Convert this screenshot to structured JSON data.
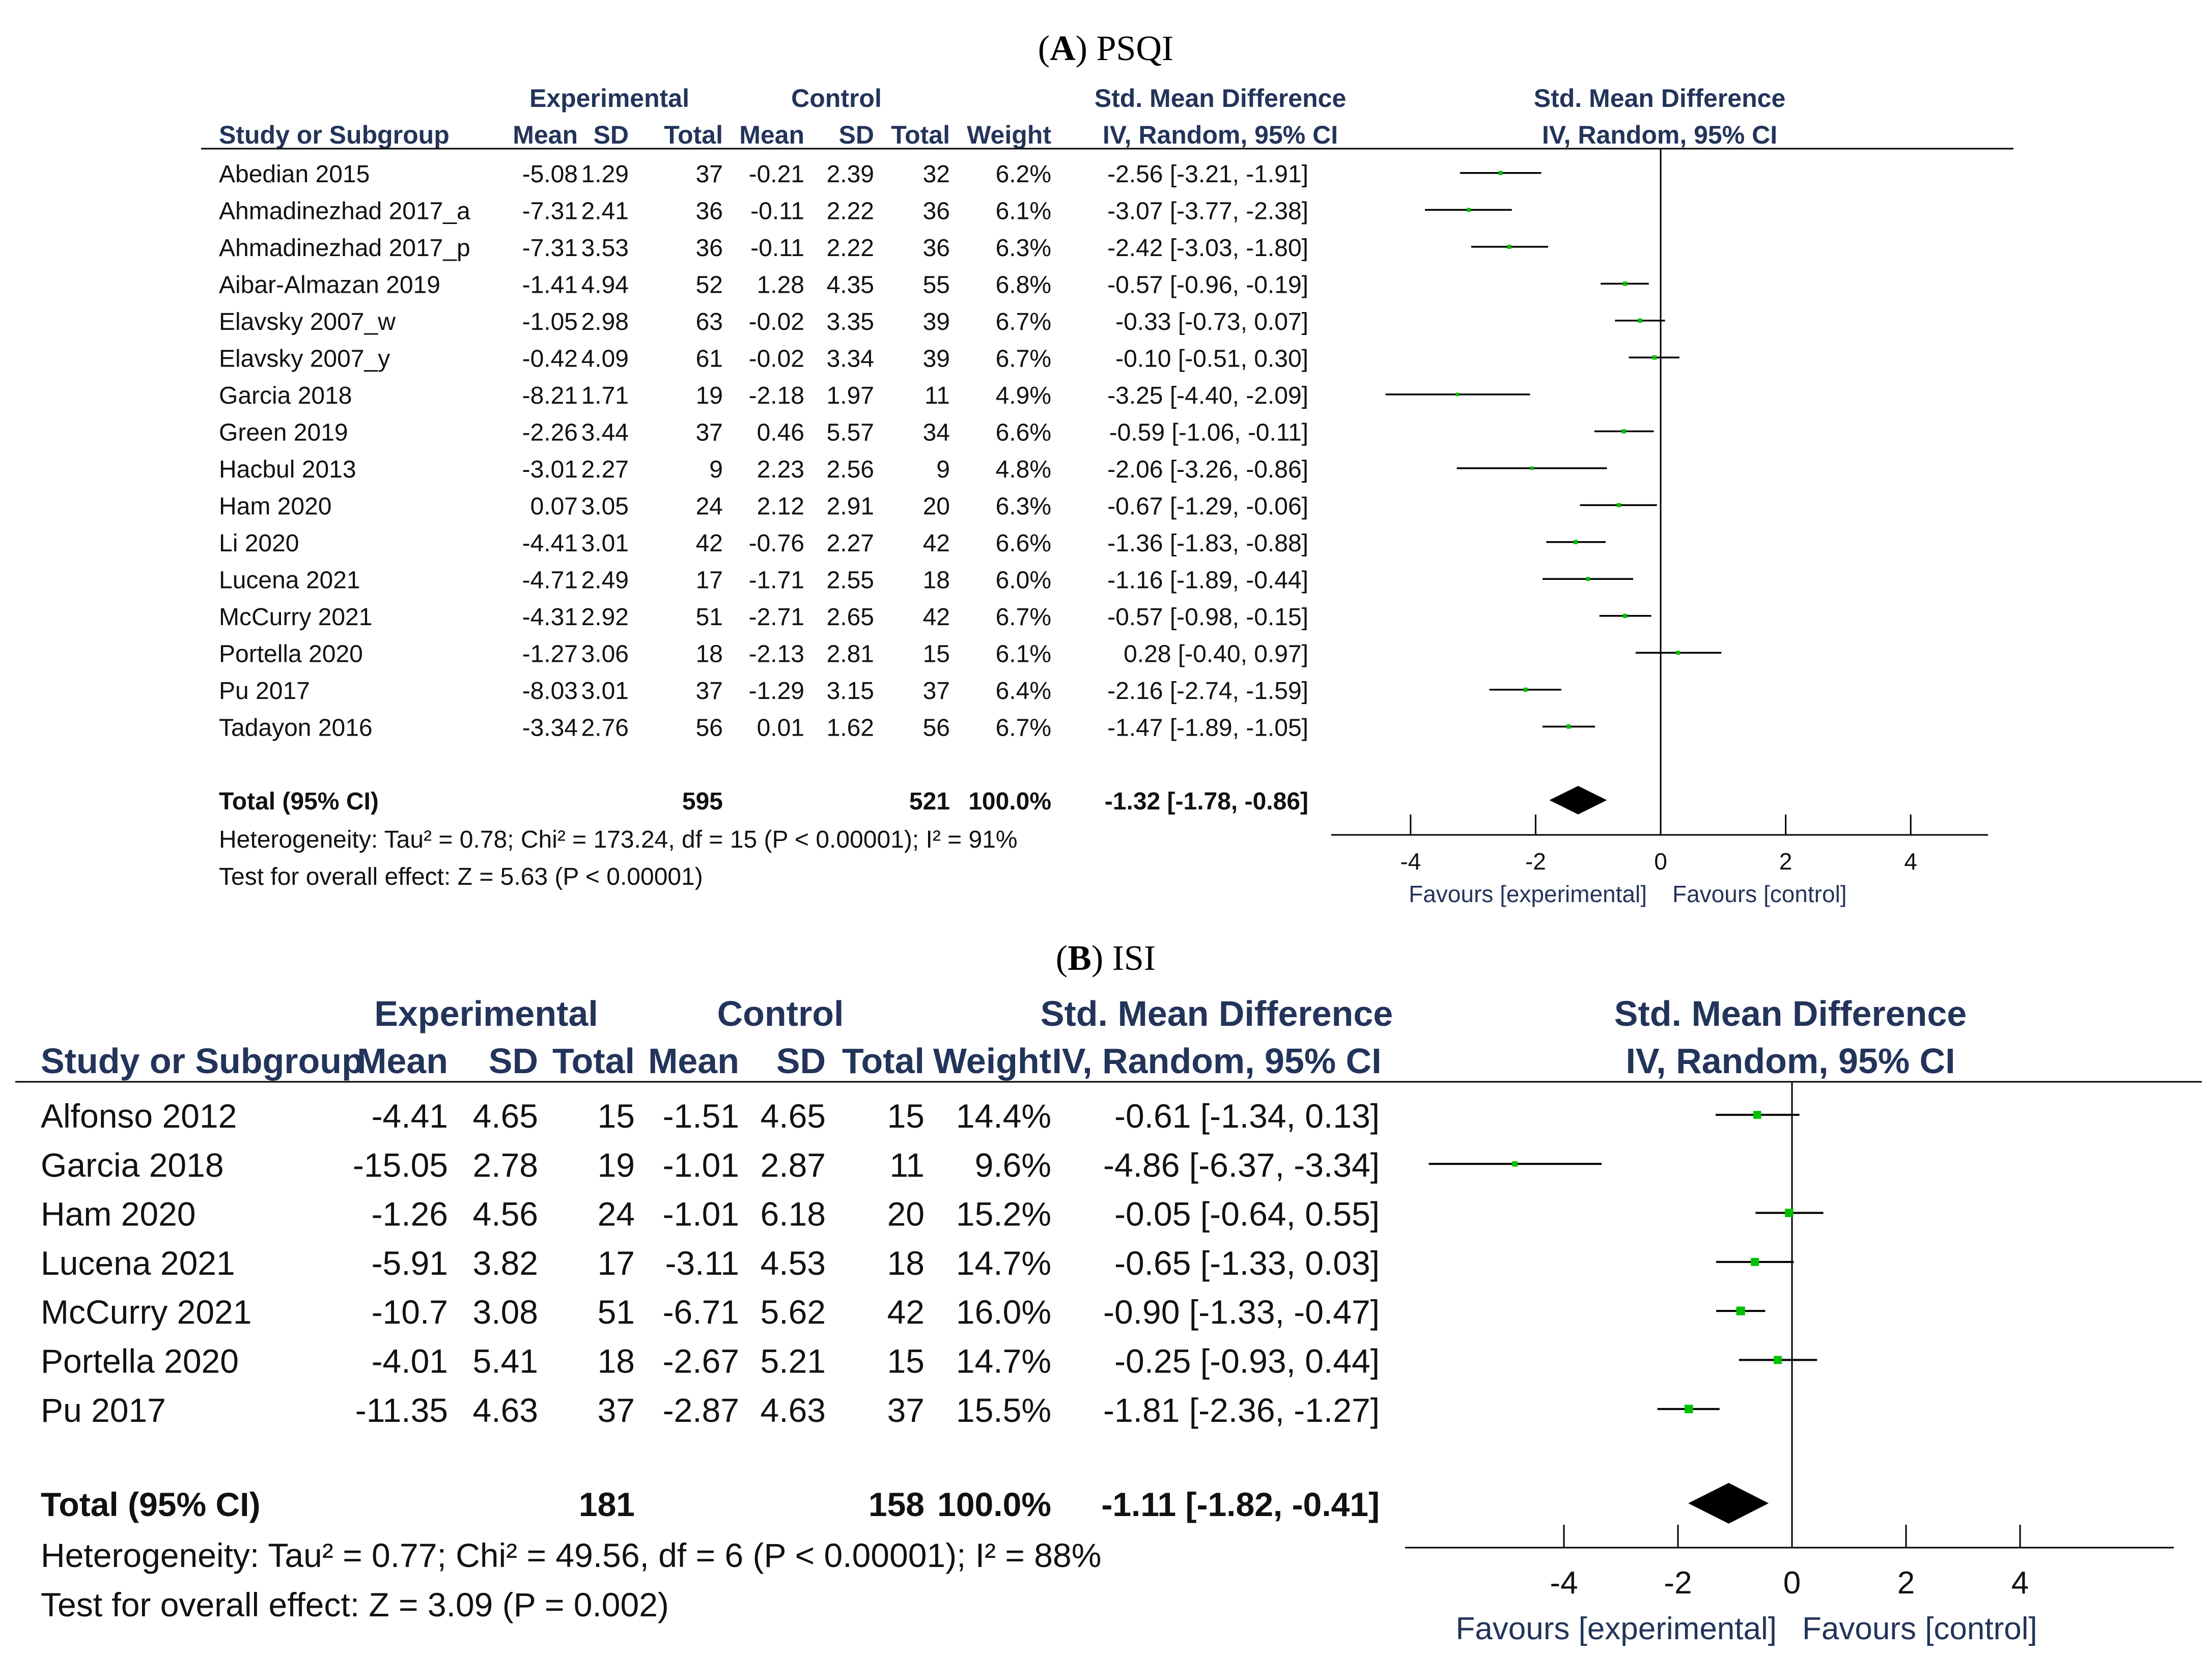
{
  "chart_data": [
    {
      "type": "table",
      "panel_letter": "A",
      "panel_name": "PSQI",
      "header": {
        "group_experimental": "Experimental",
        "group_control": "Control",
        "smd_title": "Std. Mean Difference",
        "study_col": "Study or Subgroup",
        "mean": "Mean",
        "sd": "SD",
        "total": "Total",
        "weight": "Weight",
        "method": "IV, Random, 95% CI",
        "plot_title": "Std. Mean Difference",
        "plot_method": "IV, Random, 95% CI"
      },
      "studies": [
        {
          "name": "Abedian 2015",
          "e_mean": "-5.08",
          "e_sd": "1.29",
          "e_total": "37",
          "c_mean": "-0.21",
          "c_sd": "2.39",
          "c_total": "32",
          "weight": "6.2%",
          "ci_text": "-2.56 [-3.21, -1.91]",
          "est": -2.56,
          "lo": -3.21,
          "hi": -1.91,
          "w": 6.2
        },
        {
          "name": "Ahmadinezhad 2017_a",
          "e_mean": "-7.31",
          "e_sd": "2.41",
          "e_total": "36",
          "c_mean": "-0.11",
          "c_sd": "2.22",
          "c_total": "36",
          "weight": "6.1%",
          "ci_text": "-3.07 [-3.77, -2.38]",
          "est": -3.07,
          "lo": -3.77,
          "hi": -2.38,
          "w": 6.1
        },
        {
          "name": "Ahmadinezhad 2017_p",
          "e_mean": "-7.31",
          "e_sd": "3.53",
          "e_total": "36",
          "c_mean": "-0.11",
          "c_sd": "2.22",
          "c_total": "36",
          "weight": "6.3%",
          "ci_text": "-2.42 [-3.03, -1.80]",
          "est": -2.42,
          "lo": -3.03,
          "hi": -1.8,
          "w": 6.3
        },
        {
          "name": "Aibar-Almazan 2019",
          "e_mean": "-1.41",
          "e_sd": "4.94",
          "e_total": "52",
          "c_mean": "1.28",
          "c_sd": "4.35",
          "c_total": "55",
          "weight": "6.8%",
          "ci_text": "-0.57 [-0.96, -0.19]",
          "est": -0.57,
          "lo": -0.96,
          "hi": -0.19,
          "w": 6.8
        },
        {
          "name": "Elavsky 2007_w",
          "e_mean": "-1.05",
          "e_sd": "2.98",
          "e_total": "63",
          "c_mean": "-0.02",
          "c_sd": "3.35",
          "c_total": "39",
          "weight": "6.7%",
          "ci_text": "-0.33 [-0.73, 0.07]",
          "est": -0.33,
          "lo": -0.73,
          "hi": 0.07,
          "w": 6.7
        },
        {
          "name": "Elavsky 2007_y",
          "e_mean": "-0.42",
          "e_sd": "4.09",
          "e_total": "61",
          "c_mean": "-0.02",
          "c_sd": "3.34",
          "c_total": "39",
          "weight": "6.7%",
          "ci_text": "-0.10 [-0.51, 0.30]",
          "est": -0.1,
          "lo": -0.51,
          "hi": 0.3,
          "w": 6.7
        },
        {
          "name": "Garcia 2018",
          "e_mean": "-8.21",
          "e_sd": "1.71",
          "e_total": "19",
          "c_mean": "-2.18",
          "c_sd": "1.97",
          "c_total": "11",
          "weight": "4.9%",
          "ci_text": "-3.25 [-4.40, -2.09]",
          "est": -3.25,
          "lo": -4.4,
          "hi": -2.09,
          "w": 4.9
        },
        {
          "name": "Green 2019",
          "e_mean": "-2.26",
          "e_sd": "3.44",
          "e_total": "37",
          "c_mean": "0.46",
          "c_sd": "5.57",
          "c_total": "34",
          "weight": "6.6%",
          "ci_text": "-0.59 [-1.06, -0.11]",
          "est": -0.59,
          "lo": -1.06,
          "hi": -0.11,
          "w": 6.6
        },
        {
          "name": "Hacbul 2013",
          "e_mean": "-3.01",
          "e_sd": "2.27",
          "e_total": "9",
          "c_mean": "2.23",
          "c_sd": "2.56",
          "c_total": "9",
          "weight": "4.8%",
          "ci_text": "-2.06 [-3.26, -0.86]",
          "est": -2.06,
          "lo": -3.26,
          "hi": -0.86,
          "w": 4.8
        },
        {
          "name": "Ham 2020",
          "e_mean": "0.07",
          "e_sd": "3.05",
          "e_total": "24",
          "c_mean": "2.12",
          "c_sd": "2.91",
          "c_total": "20",
          "weight": "6.3%",
          "ci_text": "-0.67 [-1.29, -0.06]",
          "est": -0.67,
          "lo": -1.29,
          "hi": -0.06,
          "w": 6.3
        },
        {
          "name": "Li 2020",
          "e_mean": "-4.41",
          "e_sd": "3.01",
          "e_total": "42",
          "c_mean": "-0.76",
          "c_sd": "2.27",
          "c_total": "42",
          "weight": "6.6%",
          "ci_text": "-1.36 [-1.83, -0.88]",
          "est": -1.36,
          "lo": -1.83,
          "hi": -0.88,
          "w": 6.6
        },
        {
          "name": "Lucena 2021",
          "e_mean": "-4.71",
          "e_sd": "2.49",
          "e_total": "17",
          "c_mean": "-1.71",
          "c_sd": "2.55",
          "c_total": "18",
          "weight": "6.0%",
          "ci_text": "-1.16 [-1.89, -0.44]",
          "est": -1.16,
          "lo": -1.89,
          "hi": -0.44,
          "w": 6.0
        },
        {
          "name": "McCurry 2021",
          "e_mean": "-4.31",
          "e_sd": "2.92",
          "e_total": "51",
          "c_mean": "-2.71",
          "c_sd": "2.65",
          "c_total": "42",
          "weight": "6.7%",
          "ci_text": "-0.57 [-0.98, -0.15]",
          "est": -0.57,
          "lo": -0.98,
          "hi": -0.15,
          "w": 6.7
        },
        {
          "name": "Portella 2020",
          "e_mean": "-1.27",
          "e_sd": "3.06",
          "e_total": "18",
          "c_mean": "-2.13",
          "c_sd": "2.81",
          "c_total": "15",
          "weight": "6.1%",
          "ci_text": "0.28 [-0.40, 0.97]",
          "est": 0.28,
          "lo": -0.4,
          "hi": 0.97,
          "w": 6.1
        },
        {
          "name": "Pu 2017",
          "e_mean": "-8.03",
          "e_sd": "3.01",
          "e_total": "37",
          "c_mean": "-1.29",
          "c_sd": "3.15",
          "c_total": "37",
          "weight": "6.4%",
          "ci_text": "-2.16 [-2.74, -1.59]",
          "est": -2.16,
          "lo": -2.74,
          "hi": -1.59,
          "w": 6.4
        },
        {
          "name": "Tadayon 2016",
          "e_mean": "-3.34",
          "e_sd": "2.76",
          "e_total": "56",
          "c_mean": "0.01",
          "c_sd": "1.62",
          "c_total": "56",
          "weight": "6.7%",
          "ci_text": "-1.47 [-1.89, -1.05]",
          "est": -1.47,
          "lo": -1.89,
          "hi": -1.05,
          "w": 6.7
        }
      ],
      "total": {
        "label": "Total (95% CI)",
        "e_total": "595",
        "c_total": "521",
        "weight": "100.0%",
        "ci_text": "-1.32 [-1.78, -0.86]",
        "est": -1.32,
        "lo": -1.78,
        "hi": -0.86
      },
      "heterogeneity": "Heterogeneity: Tau² = 0.78; Chi² = 173.24, df = 15 (P < 0.00001); I² = 91%",
      "overall_test": "Test for overall effect: Z = 5.63 (P < 0.00001)",
      "x_ticks": [
        "-4",
        "-2",
        "0",
        "2",
        "4"
      ],
      "xlim": [
        -5,
        5.5
      ],
      "favours_left": "Favours [experimental]",
      "favours_right": "Favours [control]",
      "marker_color": "#00c000"
    },
    {
      "type": "table",
      "panel_letter": "B",
      "panel_name": "ISI",
      "header": {
        "group_experimental": "Experimental",
        "group_control": "Control",
        "smd_title": "Std. Mean Difference",
        "study_col": "Study or Subgroup",
        "mean": "Mean",
        "sd": "SD",
        "total": "Total",
        "weight": "Weight",
        "method": "IV, Random, 95% CI",
        "plot_title": "Std. Mean Difference",
        "plot_method": "IV, Random, 95% CI"
      },
      "studies": [
        {
          "name": "Alfonso 2012",
          "e_mean": "-4.41",
          "e_sd": "4.65",
          "e_total": "15",
          "c_mean": "-1.51",
          "c_sd": "4.65",
          "c_total": "15",
          "weight": "14.4%",
          "ci_text": "-0.61 [-1.34, 0.13]",
          "est": -0.61,
          "lo": -1.34,
          "hi": 0.13,
          "w": 14.4
        },
        {
          "name": "Garcia 2018",
          "e_mean": "-15.05",
          "e_sd": "2.78",
          "e_total": "19",
          "c_mean": "-1.01",
          "c_sd": "2.87",
          "c_total": "11",
          "weight": "9.6%",
          "ci_text": "-4.86 [-6.37, -3.34]",
          "est": -4.86,
          "lo": -6.37,
          "hi": -3.34,
          "w": 9.6
        },
        {
          "name": "Ham 2020",
          "e_mean": "-1.26",
          "e_sd": "4.56",
          "e_total": "24",
          "c_mean": "-1.01",
          "c_sd": "6.18",
          "c_total": "20",
          "weight": "15.2%",
          "ci_text": "-0.05 [-0.64, 0.55]",
          "est": -0.05,
          "lo": -0.64,
          "hi": 0.55,
          "w": 15.2
        },
        {
          "name": "Lucena 2021",
          "e_mean": "-5.91",
          "e_sd": "3.82",
          "e_total": "17",
          "c_mean": "-3.11",
          "c_sd": "4.53",
          "c_total": "18",
          "weight": "14.7%",
          "ci_text": "-0.65 [-1.33, 0.03]",
          "est": -0.65,
          "lo": -1.33,
          "hi": 0.03,
          "w": 14.7
        },
        {
          "name": "McCurry 2021",
          "e_mean": "-10.7",
          "e_sd": "3.08",
          "e_total": "51",
          "c_mean": "-6.71",
          "c_sd": "5.62",
          "c_total": "42",
          "weight": "16.0%",
          "ci_text": "-0.90 [-1.33, -0.47]",
          "est": -0.9,
          "lo": -1.33,
          "hi": -0.47,
          "w": 16.0
        },
        {
          "name": "Portella 2020",
          "e_mean": "-4.01",
          "e_sd": "5.41",
          "e_total": "18",
          "c_mean": "-2.67",
          "c_sd": "5.21",
          "c_total": "15",
          "weight": "14.7%",
          "ci_text": "-0.25 [-0.93, 0.44]",
          "est": -0.25,
          "lo": -0.93,
          "hi": 0.44,
          "w": 14.7
        },
        {
          "name": "Pu 2017",
          "e_mean": "-11.35",
          "e_sd": "4.63",
          "e_total": "37",
          "c_mean": "-2.87",
          "c_sd": "4.63",
          "c_total": "37",
          "weight": "15.5%",
          "ci_text": "-1.81 [-2.36, -1.27]",
          "est": -1.81,
          "lo": -2.36,
          "hi": -1.27,
          "w": 15.5
        }
      ],
      "total": {
        "label": "Total (95% CI)",
        "e_total": "181",
        "c_total": "158",
        "weight": "100.0%",
        "ci_text": "-1.11 [-1.82, -0.41]",
        "est": -1.11,
        "lo": -1.82,
        "hi": -0.41
      },
      "heterogeneity": "Heterogeneity: Tau² = 0.77; Chi² = 49.56, df = 6 (P < 0.00001); I² = 88%",
      "overall_test": "Test for overall effect: Z = 3.09 (P = 0.002)",
      "x_ticks": [
        "-4",
        "-2",
        "0",
        "2",
        "4"
      ],
      "xlim": [
        -6.5,
        6.8
      ],
      "favours_left": "Favours [experimental]",
      "favours_right": "Favours [control]",
      "marker_color": "#00c000"
    }
  ]
}
